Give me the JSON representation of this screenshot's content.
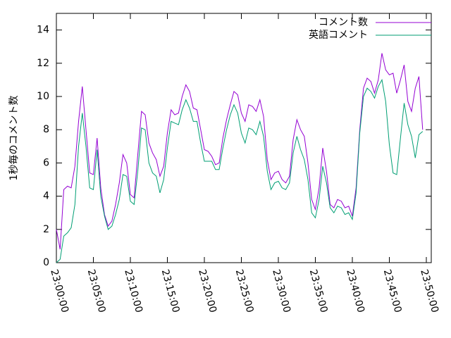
{
  "chart_data": {
    "type": "line",
    "ylabel": "1秒毎のコメント数",
    "x": [
      "23:00:00",
      "23:00:30",
      "23:01:00",
      "23:01:30",
      "23:02:00",
      "23:02:30",
      "23:03:00",
      "23:03:30",
      "23:04:00",
      "23:04:30",
      "23:05:00",
      "23:05:30",
      "23:06:00",
      "23:06:30",
      "23:07:00",
      "23:07:30",
      "23:08:00",
      "23:08:30",
      "23:09:00",
      "23:09:30",
      "23:10:00",
      "23:10:30",
      "23:11:00",
      "23:11:30",
      "23:12:00",
      "23:12:30",
      "23:13:00",
      "23:13:30",
      "23:14:00",
      "23:14:30",
      "23:15:00",
      "23:15:30",
      "23:16:00",
      "23:16:30",
      "23:17:00",
      "23:17:30",
      "23:18:00",
      "23:18:30",
      "23:19:00",
      "23:19:30",
      "23:20:00",
      "23:20:30",
      "23:21:00",
      "23:21:30",
      "23:22:00",
      "23:22:30",
      "23:23:00",
      "23:23:30",
      "23:24:00",
      "23:24:30",
      "23:25:00",
      "23:25:30",
      "23:26:00",
      "23:26:30",
      "23:27:00",
      "23:27:30",
      "23:28:00",
      "23:28:30",
      "23:29:00",
      "23:29:30",
      "23:30:00",
      "23:30:30",
      "23:31:00",
      "23:31:30",
      "23:32:00",
      "23:32:30",
      "23:33:00",
      "23:33:30",
      "23:34:00",
      "23:34:30",
      "23:35:00",
      "23:35:30",
      "23:36:00",
      "23:36:30",
      "23:37:00",
      "23:37:30",
      "23:38:00",
      "23:38:30",
      "23:39:00",
      "23:39:30",
      "23:40:00",
      "23:40:30",
      "23:41:00",
      "23:41:30",
      "23:42:00",
      "23:42:30",
      "23:43:00",
      "23:43:30",
      "23:44:00",
      "23:44:30",
      "23:45:00",
      "23:45:30",
      "23:46:00",
      "23:46:30",
      "23:47:00",
      "23:47:30",
      "23:48:00",
      "23:48:30",
      "23:49:00",
      "23:49:30"
    ],
    "series": [
      {
        "name": "コメント数",
        "color": "#9400d3",
        "values": [
          2.0,
          0.8,
          4.4,
          4.6,
          4.5,
          5.8,
          8.5,
          10.6,
          8.0,
          5.4,
          5.3,
          7.5,
          4.5,
          2.9,
          2.2,
          2.5,
          3.5,
          4.8,
          6.5,
          6.0,
          4.1,
          3.9,
          6.5,
          9.1,
          8.9,
          7.2,
          6.6,
          6.2,
          5.2,
          5.8,
          7.8,
          9.2,
          8.9,
          9.0,
          10.0,
          10.7,
          10.3,
          9.3,
          9.2,
          8.0,
          6.8,
          6.7,
          6.4,
          5.9,
          6.0,
          7.5,
          8.6,
          9.5,
          10.3,
          10.1,
          9.0,
          8.5,
          9.5,
          9.4,
          9.1,
          9.8,
          8.8,
          6.2,
          5.0,
          5.4,
          5.5,
          5.0,
          4.8,
          5.2,
          7.4,
          8.6,
          8.0,
          7.6,
          6.0,
          3.8,
          3.2,
          4.5,
          6.9,
          5.5,
          3.5,
          3.3,
          3.8,
          3.7,
          3.3,
          3.4,
          2.8,
          4.5,
          8.0,
          10.5,
          11.1,
          10.9,
          10.2,
          11.0,
          12.6,
          11.6,
          11.3,
          11.4,
          10.2,
          11.0,
          11.9,
          9.7,
          9.1,
          10.5,
          11.2,
          8.0
        ]
      },
      {
        "name": "英語コメント",
        "color": "#009e73",
        "values": [
          0.0,
          0.2,
          1.6,
          1.8,
          2.1,
          3.5,
          7.0,
          9.0,
          7.0,
          4.5,
          4.4,
          6.8,
          4.0,
          2.8,
          2.0,
          2.2,
          2.9,
          3.8,
          5.3,
          5.2,
          3.7,
          3.5,
          5.5,
          8.1,
          8.0,
          6.0,
          5.4,
          5.2,
          4.2,
          5.0,
          6.9,
          8.5,
          8.4,
          8.3,
          9.2,
          9.8,
          9.3,
          8.5,
          8.5,
          7.2,
          6.1,
          6.1,
          6.1,
          5.6,
          5.6,
          6.9,
          8.0,
          8.9,
          9.5,
          9.0,
          7.8,
          7.2,
          8.1,
          8.0,
          7.7,
          8.5,
          7.6,
          5.5,
          4.4,
          4.8,
          4.9,
          4.5,
          4.4,
          4.8,
          6.6,
          7.6,
          6.8,
          6.2,
          5.0,
          3.0,
          2.7,
          3.8,
          5.8,
          4.8,
          3.3,
          3.0,
          3.4,
          3.3,
          2.9,
          3.0,
          2.6,
          4.2,
          7.8,
          10.0,
          10.5,
          10.3,
          9.9,
          10.6,
          11.0,
          9.7,
          7.1,
          5.4,
          5.3,
          7.5,
          9.6,
          8.3,
          7.6,
          6.3,
          7.7,
          7.9
        ]
      }
    ],
    "xlim": [
      "23:00:00",
      "23:50:00"
    ],
    "xticks": [
      "23:00:00",
      "23:05:00",
      "23:10:00",
      "23:15:00",
      "23:20:00",
      "23:25:00",
      "23:30:00",
      "23:35:00",
      "23:40:00",
      "23:45:00",
      "23:50:00"
    ],
    "ylim": [
      0,
      15
    ],
    "yticks": [
      0,
      2,
      4,
      6,
      8,
      10,
      12,
      14
    ],
    "legend": "top-right"
  }
}
